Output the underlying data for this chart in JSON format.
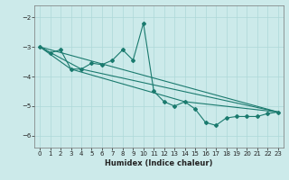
{
  "xlabel": "Humidex (Indice chaleur)",
  "bg_color": "#cceaea",
  "line_color": "#1a7a6e",
  "grid_color": "#add8d8",
  "xlim": [
    -0.5,
    23.5
  ],
  "ylim": [
    -6.4,
    -1.6
  ],
  "yticks": [
    -6,
    -5,
    -4,
    -3,
    -2
  ],
  "xticks": [
    0,
    1,
    2,
    3,
    4,
    5,
    6,
    7,
    8,
    9,
    10,
    11,
    12,
    13,
    14,
    15,
    16,
    17,
    18,
    19,
    20,
    21,
    22,
    23
  ],
  "series": [
    [
      0,
      -3.0
    ],
    [
      1,
      -3.2
    ],
    [
      2,
      -3.1
    ],
    [
      3,
      -3.75
    ],
    [
      4,
      -3.75
    ],
    [
      5,
      -3.55
    ],
    [
      6,
      -3.6
    ],
    [
      7,
      -3.45
    ],
    [
      8,
      -3.1
    ],
    [
      9,
      -3.45
    ],
    [
      10,
      -2.2
    ],
    [
      11,
      -4.5
    ],
    [
      12,
      -4.85
    ],
    [
      13,
      -5.0
    ],
    [
      14,
      -4.85
    ],
    [
      15,
      -5.1
    ],
    [
      16,
      -5.55
    ],
    [
      17,
      -5.65
    ],
    [
      18,
      -5.4
    ],
    [
      19,
      -5.35
    ],
    [
      20,
      -5.35
    ],
    [
      21,
      -5.35
    ],
    [
      22,
      -5.25
    ],
    [
      23,
      -5.2
    ]
  ],
  "straight_lines": [
    [
      [
        0,
        -3.0
      ],
      [
        23,
        -5.2
      ]
    ],
    [
      [
        0,
        -3.0
      ],
      [
        4,
        -3.75
      ],
      [
        23,
        -5.2
      ]
    ],
    [
      [
        0,
        -3.0
      ],
      [
        3,
        -3.75
      ],
      [
        14,
        -4.85
      ],
      [
        23,
        -5.2
      ]
    ]
  ]
}
